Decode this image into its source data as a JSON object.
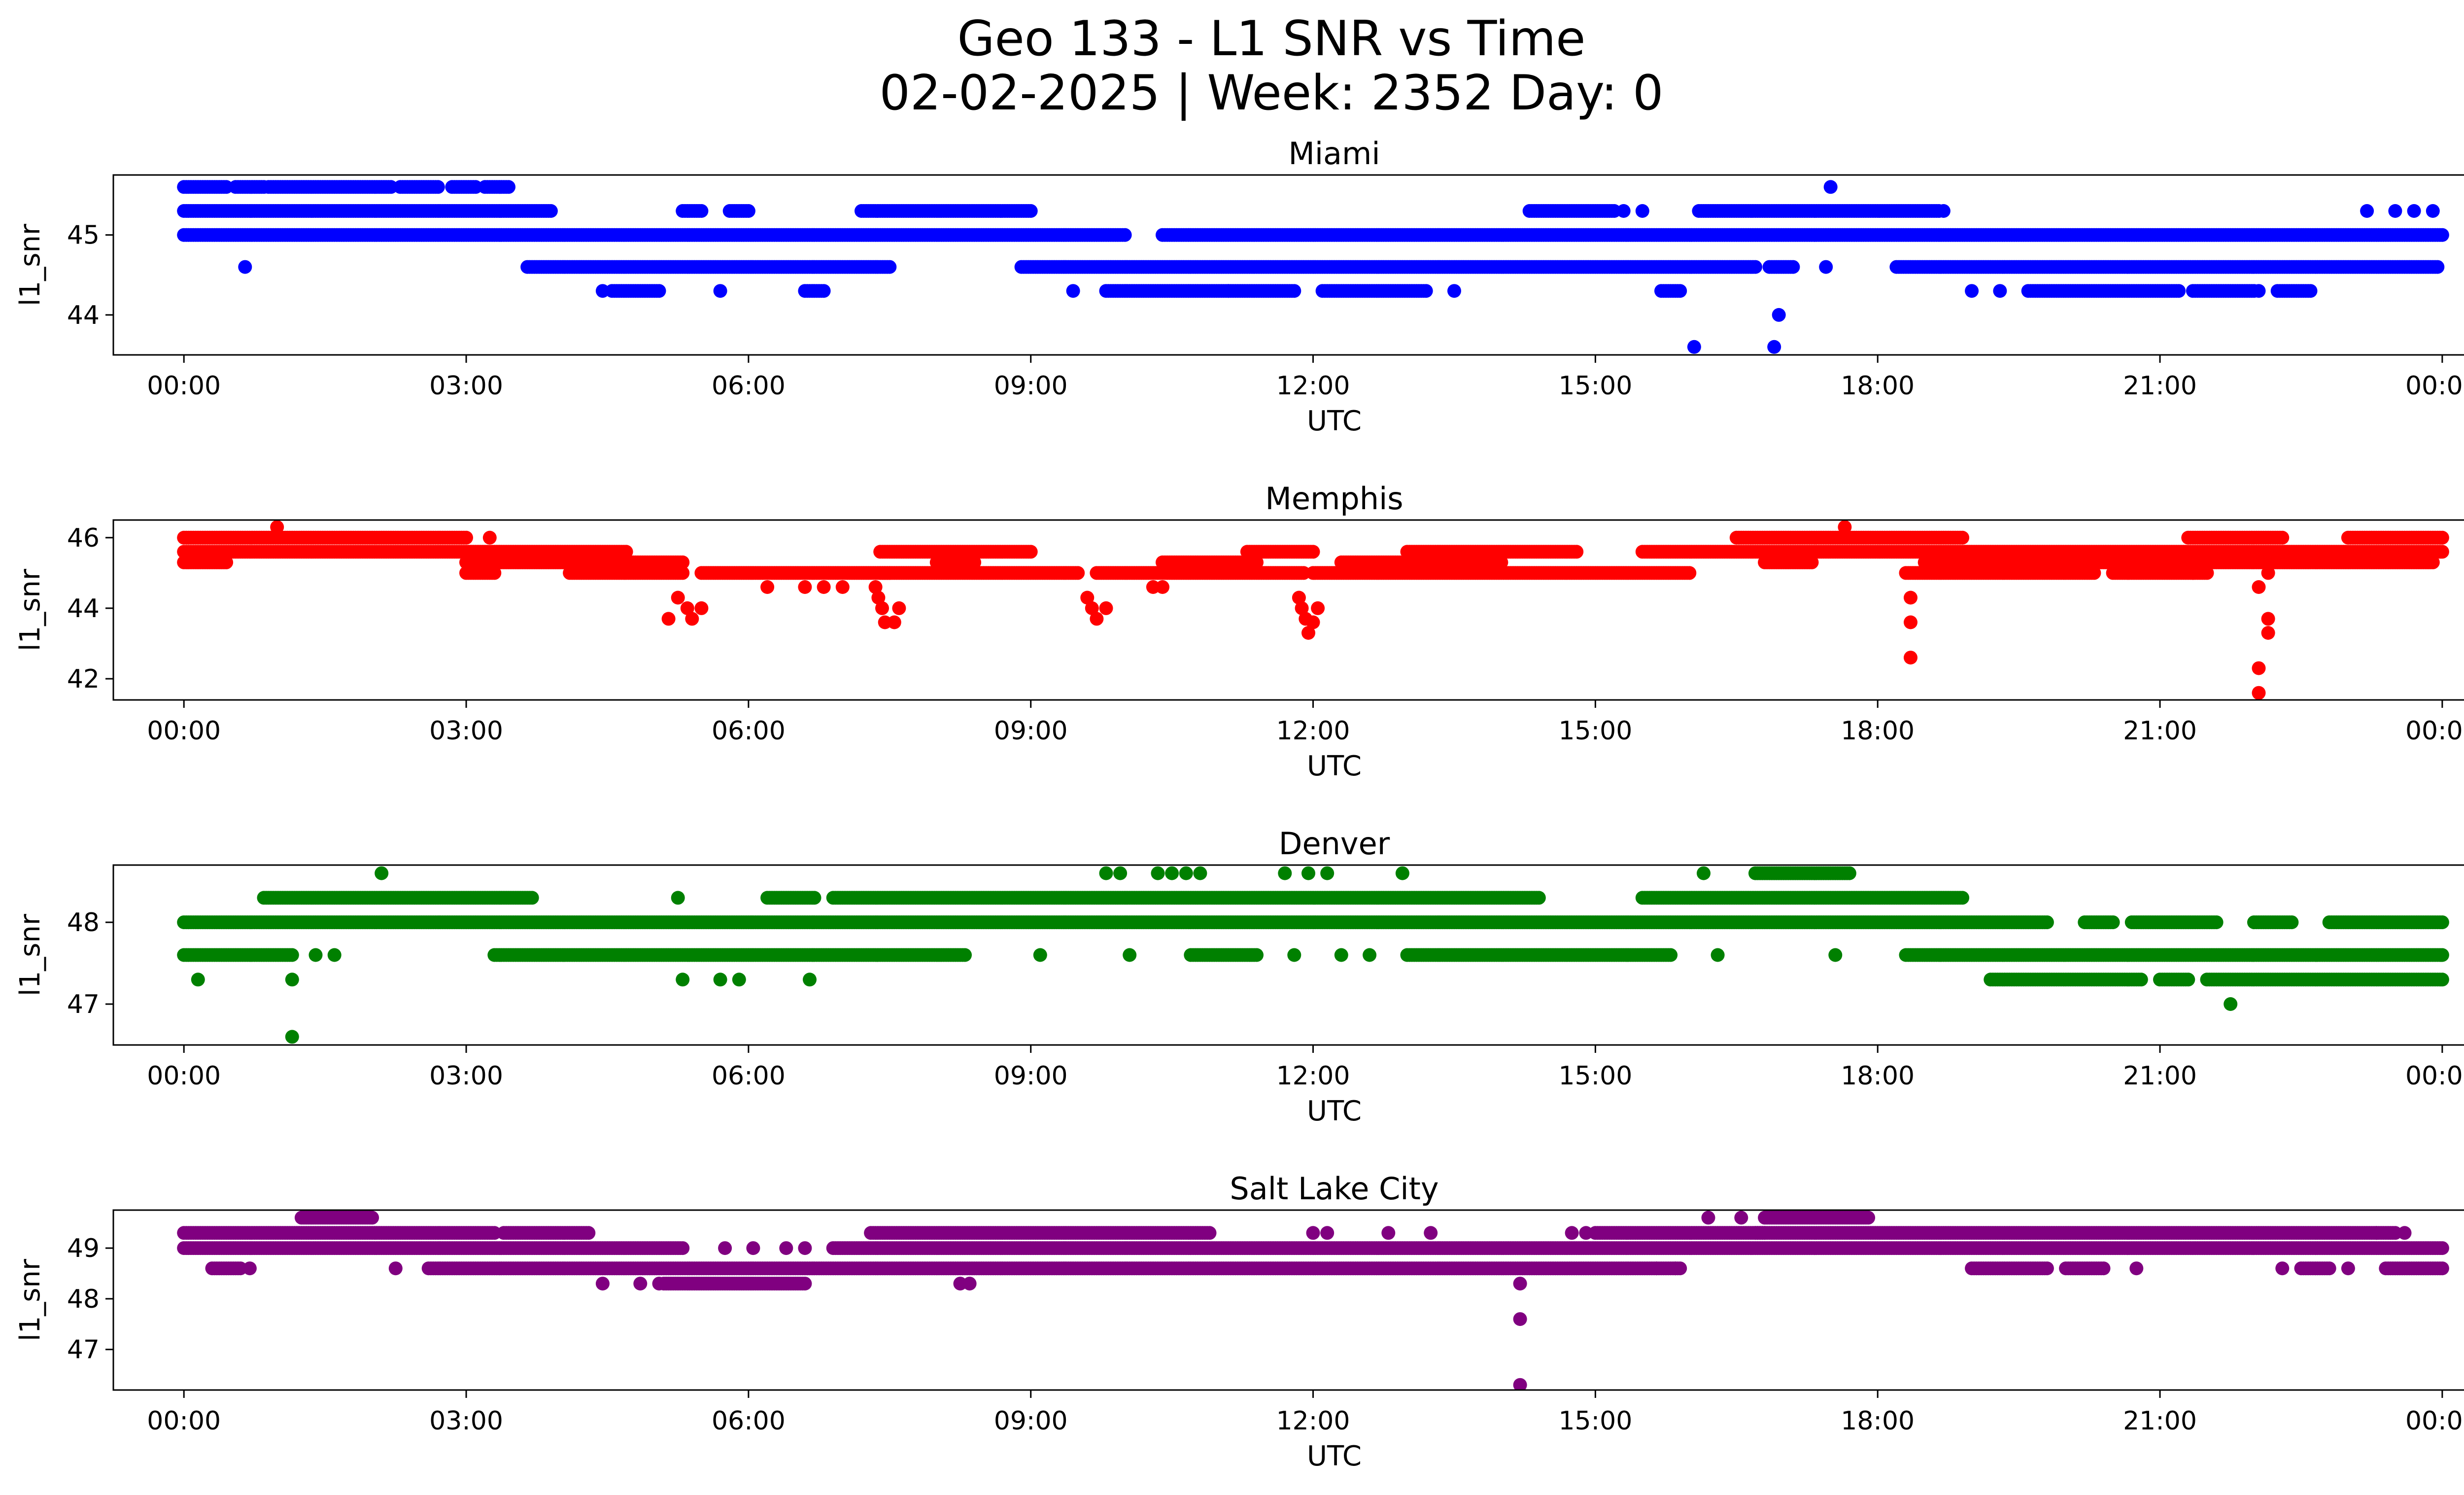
{
  "chart_data": {
    "type": "scatter",
    "title_line1": "Geo 133 - L1 SNR vs Time",
    "title_line2": "02-02-2025 | Week: 2352 Day: 0",
    "xlabel": "UTC",
    "ylabel": "l1_snr",
    "x_unit": "hours",
    "xlim": [
      -0.75,
      25.2
    ],
    "x_ticks": [
      0,
      3,
      6,
      9,
      12,
      15,
      18,
      21,
      24
    ],
    "x_tick_labels": [
      "00:00",
      "03:00",
      "06:00",
      "09:00",
      "12:00",
      "15:00",
      "18:00",
      "21:00",
      "00:00"
    ],
    "panels": [
      {
        "title": "Miami",
        "color": "#0000ff",
        "ylim": [
          43.5,
          45.75
        ],
        "y_ticks": [
          44,
          45
        ],
        "y_tick_labels": [
          "44",
          "45"
        ],
        "bands": [
          {
            "y": 45.6,
            "segments": [
              [
                0.0,
                0.45
              ],
              [
                0.55,
                0.85
              ],
              [
                0.9,
                2.2
              ],
              [
                2.3,
                2.7
              ],
              [
                2.85,
                3.1
              ],
              [
                3.2,
                3.45
              ]
            ]
          },
          {
            "y": 45.3,
            "segments": [
              [
                0.0,
                3.9
              ],
              [
                5.3,
                5.5
              ],
              [
                5.8,
                6.0
              ],
              [
                7.2,
                9.0
              ],
              [
                14.3,
                15.2
              ],
              [
                16.1,
                18.65
              ]
            ]
          },
          {
            "y": 45.0,
            "segments": [
              [
                0.0,
                10.0
              ],
              [
                10.4,
                24.0
              ]
            ]
          },
          {
            "y": 44.6,
            "segments": [
              [
                3.65,
                7.5
              ],
              [
                8.9,
                16.7
              ],
              [
                16.85,
                17.1
              ],
              [
                18.2,
                23.95
              ]
            ]
          },
          {
            "y": 44.3,
            "segments": [
              [
                4.55,
                5.05
              ],
              [
                6.6,
                6.8
              ],
              [
                9.8,
                11.8
              ],
              [
                12.1,
                13.2
              ],
              [
                15.7,
                15.9
              ],
              [
                19.6,
                21.2
              ],
              [
                21.35,
                22.0
              ],
              [
                22.25,
                22.6
              ]
            ]
          }
        ],
        "points": [
          [
            0.65,
            44.6
          ],
          [
            4.45,
            44.3
          ],
          [
            5.7,
            44.3
          ],
          [
            9.45,
            44.3
          ],
          [
            11.1,
            44.3
          ],
          [
            13.5,
            44.3
          ],
          [
            15.3,
            45.3
          ],
          [
            15.5,
            45.3
          ],
          [
            17.5,
            45.6
          ],
          [
            17.45,
            44.6
          ],
          [
            18.7,
            45.3
          ],
          [
            19.0,
            44.3
          ],
          [
            19.3,
            44.3
          ],
          [
            22.05,
            44.3
          ],
          [
            16.05,
            43.6
          ],
          [
            16.9,
            43.6
          ],
          [
            16.95,
            44.0
          ],
          [
            23.2,
            45.3
          ],
          [
            23.5,
            45.3
          ],
          [
            23.7,
            45.3
          ],
          [
            23.9,
            45.3
          ]
        ]
      },
      {
        "title": "Memphis",
        "color": "#ff0000",
        "ylim": [
          41.4,
          46.5
        ],
        "y_ticks": [
          42,
          44,
          46
        ],
        "y_tick_labels": [
          "42",
          "44",
          "46"
        ],
        "bands": [
          {
            "y": 46.0,
            "segments": [
              [
                0.0,
                3.0
              ],
              [
                16.5,
                18.9
              ],
              [
                21.3,
                22.3
              ],
              [
                23.0,
                24.0
              ]
            ]
          },
          {
            "y": 45.6,
            "segments": [
              [
                0.0,
                4.7
              ],
              [
                7.4,
                9.0
              ],
              [
                11.3,
                12.0
              ],
              [
                13.0,
                14.8
              ],
              [
                15.5,
                24.0
              ]
            ]
          },
          {
            "y": 45.3,
            "segments": [
              [
                0.0,
                0.45
              ],
              [
                3.0,
                5.3
              ],
              [
                8.0,
                8.4
              ],
              [
                10.4,
                11.4
              ],
              [
                12.3,
                14.0
              ],
              [
                16.8,
                17.3
              ],
              [
                18.5,
                23.9
              ]
            ]
          },
          {
            "y": 45.0,
            "segments": [
              [
                3.0,
                3.3
              ],
              [
                4.1,
                5.3
              ],
              [
                5.5,
                7.5
              ],
              [
                7.4,
                9.5
              ],
              [
                9.7,
                11.9
              ],
              [
                12.0,
                16.0
              ],
              [
                18.3,
                20.3
              ],
              [
                20.5,
                21.5
              ]
            ]
          }
        ],
        "points": [
          [
            0.99,
            46.3
          ],
          [
            3.25,
            46.0
          ],
          [
            17.65,
            46.3
          ],
          [
            21.35,
            45.0
          ],
          [
            5.25,
            44.3
          ],
          [
            5.35,
            44.0
          ],
          [
            5.4,
            43.7
          ],
          [
            5.15,
            43.7
          ],
          [
            5.5,
            44.0
          ],
          [
            6.2,
            44.6
          ],
          [
            6.6,
            44.6
          ],
          [
            6.8,
            44.6
          ],
          [
            7.0,
            44.6
          ],
          [
            7.35,
            44.6
          ],
          [
            7.38,
            44.3
          ],
          [
            7.42,
            44.0
          ],
          [
            7.45,
            43.6
          ],
          [
            7.55,
            43.6
          ],
          [
            7.6,
            44.0
          ],
          [
            9.6,
            44.3
          ],
          [
            9.65,
            44.0
          ],
          [
            9.7,
            43.7
          ],
          [
            9.8,
            44.0
          ],
          [
            10.3,
            44.6
          ],
          [
            10.4,
            44.6
          ],
          [
            11.85,
            44.3
          ],
          [
            11.88,
            44.0
          ],
          [
            11.92,
            43.7
          ],
          [
            11.95,
            43.3
          ],
          [
            12.0,
            43.6
          ],
          [
            12.05,
            44.0
          ],
          [
            18.35,
            44.3
          ],
          [
            18.35,
            43.6
          ],
          [
            18.35,
            42.6
          ],
          [
            22.05,
            44.6
          ],
          [
            22.05,
            42.3
          ],
          [
            22.05,
            41.6
          ],
          [
            22.15,
            45.0
          ],
          [
            22.15,
            43.7
          ],
          [
            22.15,
            43.3
          ]
        ]
      },
      {
        "title": "Denver",
        "color": "#008000",
        "ylim": [
          46.5,
          48.7
        ],
        "y_ticks": [
          47,
          48
        ],
        "y_tick_labels": [
          "47",
          "48"
        ],
        "bands": [
          {
            "y": 48.6,
            "segments": [
              [
                16.7,
                17.7
              ]
            ]
          },
          {
            "y": 48.3,
            "segments": [
              [
                0.85,
                3.7
              ],
              [
                6.2,
                6.7
              ],
              [
                6.9,
                14.4
              ],
              [
                15.5,
                18.9
              ]
            ]
          },
          {
            "y": 48.0,
            "segments": [
              [
                0.0,
                19.8
              ],
              [
                20.2,
                20.5
              ],
              [
                20.7,
                21.6
              ],
              [
                22.0,
                22.4
              ],
              [
                22.8,
                24.0
              ]
            ]
          },
          {
            "y": 47.6,
            "segments": [
              [
                0.0,
                1.15
              ],
              [
                3.3,
                8.3
              ],
              [
                10.7,
                11.4
              ],
              [
                13.0,
                15.8
              ],
              [
                18.3,
                24.0
              ]
            ]
          },
          {
            "y": 47.3,
            "segments": [
              [
                19.2,
                20.8
              ],
              [
                21.0,
                21.3
              ],
              [
                21.5,
                24.0
              ]
            ]
          }
        ],
        "points": [
          [
            0.15,
            47.3
          ],
          [
            1.15,
            47.3
          ],
          [
            1.15,
            46.6
          ],
          [
            1.4,
            47.6
          ],
          [
            1.6,
            47.6
          ],
          [
            2.1,
            48.6
          ],
          [
            5.25,
            48.3
          ],
          [
            5.3,
            47.3
          ],
          [
            5.7,
            47.3
          ],
          [
            5.9,
            47.3
          ],
          [
            6.65,
            47.3
          ],
          [
            9.1,
            47.6
          ],
          [
            10.05,
            47.6
          ],
          [
            9.8,
            48.6
          ],
          [
            9.95,
            48.6
          ],
          [
            10.35,
            48.6
          ],
          [
            10.5,
            48.6
          ],
          [
            10.65,
            48.6
          ],
          [
            10.8,
            48.6
          ],
          [
            11.7,
            48.6
          ],
          [
            11.95,
            48.6
          ],
          [
            12.15,
            48.6
          ],
          [
            12.95,
            48.6
          ],
          [
            11.8,
            47.6
          ],
          [
            12.3,
            47.6
          ],
          [
            12.6,
            47.6
          ],
          [
            16.15,
            48.6
          ],
          [
            16.3,
            47.6
          ],
          [
            17.55,
            47.6
          ],
          [
            21.75,
            47.0
          ]
        ]
      },
      {
        "title": "Salt Lake City",
        "color": "#800080",
        "ylim": [
          46.2,
          49.75
        ],
        "y_ticks": [
          47,
          48,
          49
        ],
        "y_tick_labels": [
          "47",
          "48",
          "49"
        ],
        "bands": [
          {
            "y": 49.6,
            "segments": [
              [
                1.25,
                2.0
              ],
              [
                16.8,
                17.9
              ]
            ]
          },
          {
            "y": 49.3,
            "segments": [
              [
                0.0,
                3.3
              ],
              [
                3.4,
                4.3
              ],
              [
                7.3,
                10.9
              ],
              [
                15.0,
                16.8
              ],
              [
                16.7,
                23.5
              ]
            ]
          },
          {
            "y": 49.0,
            "segments": [
              [
                0.0,
                5.3
              ],
              [
                6.9,
                24.0
              ]
            ]
          },
          {
            "y": 48.6,
            "segments": [
              [
                0.3,
                0.6
              ],
              [
                2.6,
                15.9
              ],
              [
                19.0,
                19.8
              ],
              [
                20.0,
                20.4
              ],
              [
                22.5,
                22.8
              ],
              [
                23.4,
                24.0
              ]
            ]
          },
          {
            "y": 48.3,
            "segments": [
              [
                5.1,
                6.6
              ]
            ]
          }
        ],
        "points": [
          [
            0.7,
            48.6
          ],
          [
            2.25,
            48.6
          ],
          [
            4.45,
            48.3
          ],
          [
            4.85,
            48.3
          ],
          [
            5.05,
            48.3
          ],
          [
            5.75,
            49.0
          ],
          [
            6.05,
            49.0
          ],
          [
            6.4,
            49.0
          ],
          [
            6.6,
            49.0
          ],
          [
            8.25,
            48.3
          ],
          [
            8.35,
            48.3
          ],
          [
            12.0,
            49.3
          ],
          [
            12.15,
            49.3
          ],
          [
            12.8,
            49.3
          ],
          [
            13.25,
            49.3
          ],
          [
            14.2,
            48.3
          ],
          [
            14.2,
            47.6
          ],
          [
            14.2,
            46.3
          ],
          [
            14.75,
            49.3
          ],
          [
            14.9,
            49.3
          ],
          [
            15.65,
            48.6
          ],
          [
            15.85,
            48.6
          ],
          [
            16.2,
            49.6
          ],
          [
            16.55,
            49.6
          ],
          [
            20.75,
            48.6
          ],
          [
            22.3,
            48.6
          ],
          [
            23.0,
            48.6
          ],
          [
            23.3,
            49.3
          ],
          [
            23.6,
            49.3
          ]
        ]
      }
    ]
  }
}
